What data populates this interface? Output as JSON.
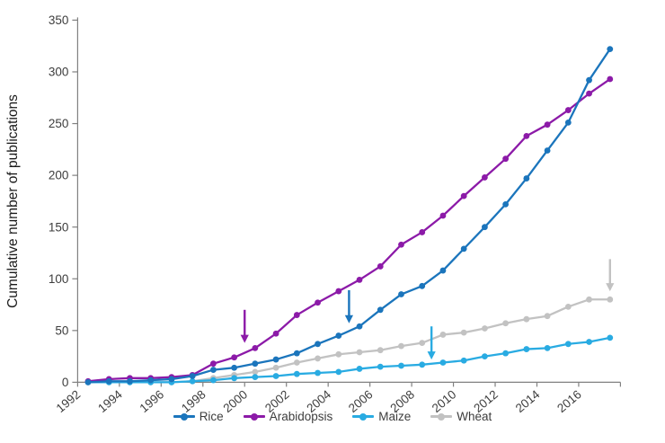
{
  "chart_data": {
    "type": "line",
    "title": "",
    "xlabel": "",
    "ylabel": "Cumulative number of publications",
    "ylim": [
      0,
      350
    ],
    "ytick_step": 50,
    "ytick_labels": [
      "0",
      "50",
      "100",
      "150",
      "200",
      "250",
      "300",
      "350"
    ],
    "xtick_labels": [
      "1992",
      "1994",
      "1996",
      "1998",
      "2000",
      "2002",
      "2004",
      "2006",
      "2008",
      "2010",
      "2012",
      "2014",
      "2016"
    ],
    "years": [
      1992,
      1993,
      1994,
      1995,
      1996,
      1997,
      1998,
      1999,
      2000,
      2001,
      2002,
      2003,
      2004,
      2005,
      2006,
      2007,
      2008,
      2009,
      2010,
      2011,
      2012,
      2013,
      2014,
      2015,
      2016,
      2017
    ],
    "grid": false,
    "legend_position": "bottom-center",
    "axis_color": "#808080",
    "tick_text_color": "#3d3d3d",
    "series": [
      {
        "name": "Rice",
        "color": "#1B75BC",
        "values": [
          0,
          1,
          1,
          2,
          3,
          6,
          12,
          14,
          18,
          22,
          28,
          37,
          45,
          54,
          70,
          85,
          93,
          108,
          129,
          150,
          172,
          197,
          224,
          251,
          292,
          322
        ]
      },
      {
        "name": "Arabidopsis",
        "color": "#8C1AA8",
        "values": [
          1,
          3,
          4,
          4,
          5,
          7,
          18,
          24,
          33,
          47,
          65,
          77,
          88,
          99,
          112,
          133,
          145,
          161,
          180,
          198,
          216,
          238,
          249,
          263,
          279,
          293
        ]
      },
      {
        "name": "Maize",
        "color": "#29ABE2",
        "values": [
          0,
          0,
          0,
          0,
          0,
          1,
          2,
          4,
          5,
          6,
          8,
          9,
          10,
          13,
          15,
          16,
          17,
          19,
          21,
          25,
          28,
          32,
          33,
          37,
          39,
          43
        ]
      },
      {
        "name": "Wheat",
        "color": "#C2C2C2",
        "values": [
          0,
          0,
          0,
          0,
          0,
          1,
          4,
          7,
          10,
          14,
          19,
          23,
          27,
          29,
          31,
          35,
          38,
          46,
          48,
          52,
          57,
          61,
          64,
          73,
          80,
          80
        ]
      }
    ],
    "annotations": [
      {
        "series": "Arabidopsis",
        "color": "#8C1AA8",
        "x_year": 1999.5,
        "y_from": 70,
        "y_to": 38
      },
      {
        "series": "Rice",
        "color": "#1B75BC",
        "x_year": 2004.5,
        "y_from": 89,
        "y_to": 57
      },
      {
        "series": "Maize",
        "color": "#29ABE2",
        "x_year": 2008.45,
        "y_from": 54,
        "y_to": 22
      },
      {
        "series": "Wheat",
        "color": "#C2C2C2",
        "x_year": 2017,
        "y_from": 119,
        "y_to": 88
      }
    ]
  }
}
